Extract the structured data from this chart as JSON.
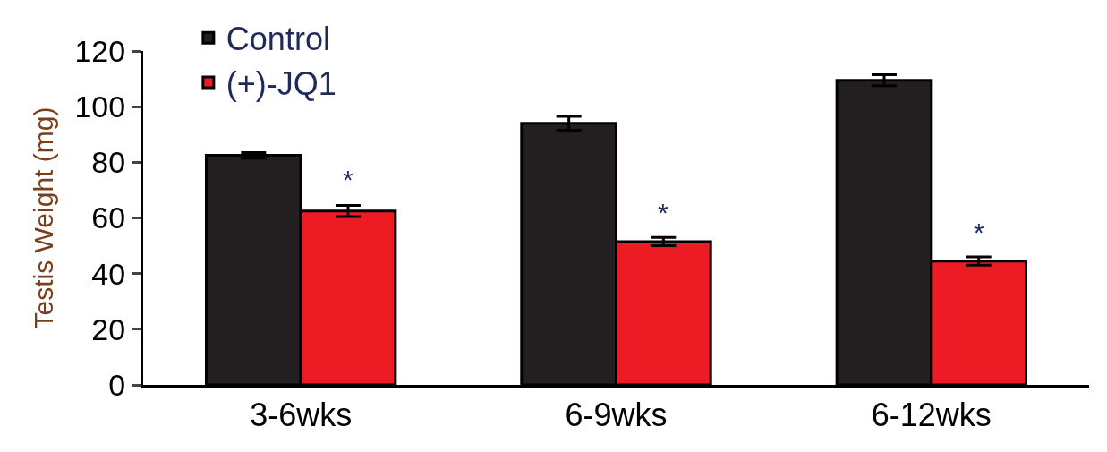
{
  "chart_data": {
    "type": "bar",
    "ylabel": "Testis Weight (mg)",
    "categories": [
      "3-6wks",
      "6-9wks",
      "6-12wks"
    ],
    "series": [
      {
        "name": "Control",
        "color": "#231f20",
        "values": [
          82.5,
          94,
          109.5
        ],
        "errors": [
          1,
          2.5,
          2
        ]
      },
      {
        "name": "(+)-JQ1",
        "color": "#ed1c24",
        "values": [
          62.5,
          51.5,
          44.5
        ],
        "errors": [
          2,
          1.5,
          1.5
        ]
      }
    ],
    "annotations": [
      {
        "text": "*",
        "x": "3-6wks",
        "y": 68
      },
      {
        "text": "*",
        "x": "6-9wks",
        "y": 56
      },
      {
        "text": "*",
        "x": "6-12wks",
        "y": 49
      }
    ],
    "ylim": [
      0,
      120
    ],
    "yticks": [
      0,
      20,
      40,
      60,
      80,
      100,
      120
    ],
    "grid": false,
    "legend": "top left"
  }
}
